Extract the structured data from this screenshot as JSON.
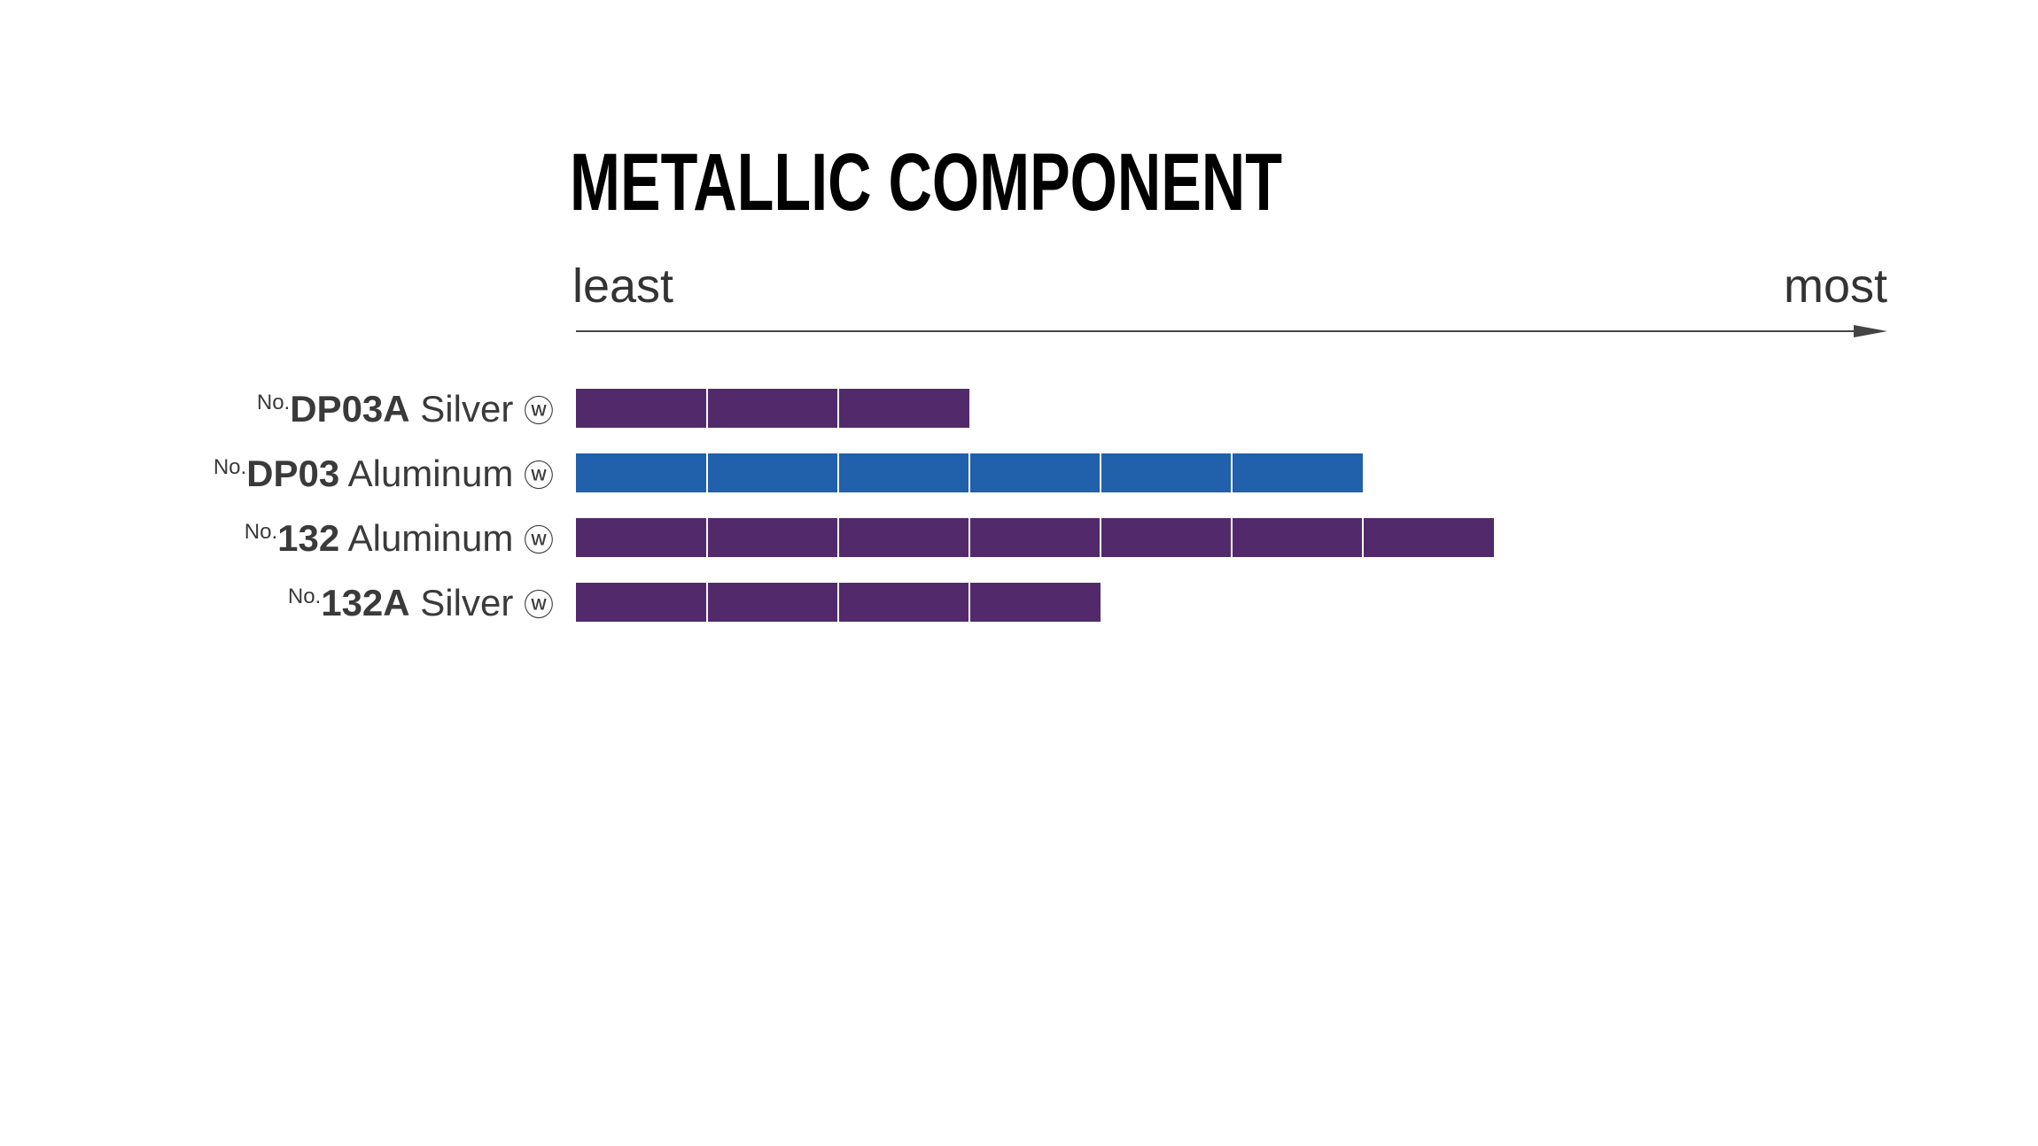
{
  "chart_data": {
    "type": "bar",
    "orientation": "horizontal",
    "title": "METALLIC COMPONENT",
    "x_label_low": "least",
    "x_label_high": "most",
    "categories": [
      {
        "prefix": "No.",
        "code": "DP03A",
        "name": "Silver",
        "symbol": "ⓦ"
      },
      {
        "prefix": "No.",
        "code": "DP03",
        "name": "Aluminum",
        "symbol": "ⓦ"
      },
      {
        "prefix": "No.",
        "code": "132",
        "name": "Aluminum",
        "symbol": "ⓦ"
      },
      {
        "prefix": "No.",
        "code": "132A",
        "name": "Silver",
        "symbol": "ⓦ"
      }
    ],
    "values": [
      3,
      6,
      7,
      4
    ],
    "colors": [
      "#522a6b",
      "#2160ab",
      "#522a6b",
      "#522a6b"
    ],
    "xlim": [
      0,
      10
    ],
    "segmented": true
  }
}
